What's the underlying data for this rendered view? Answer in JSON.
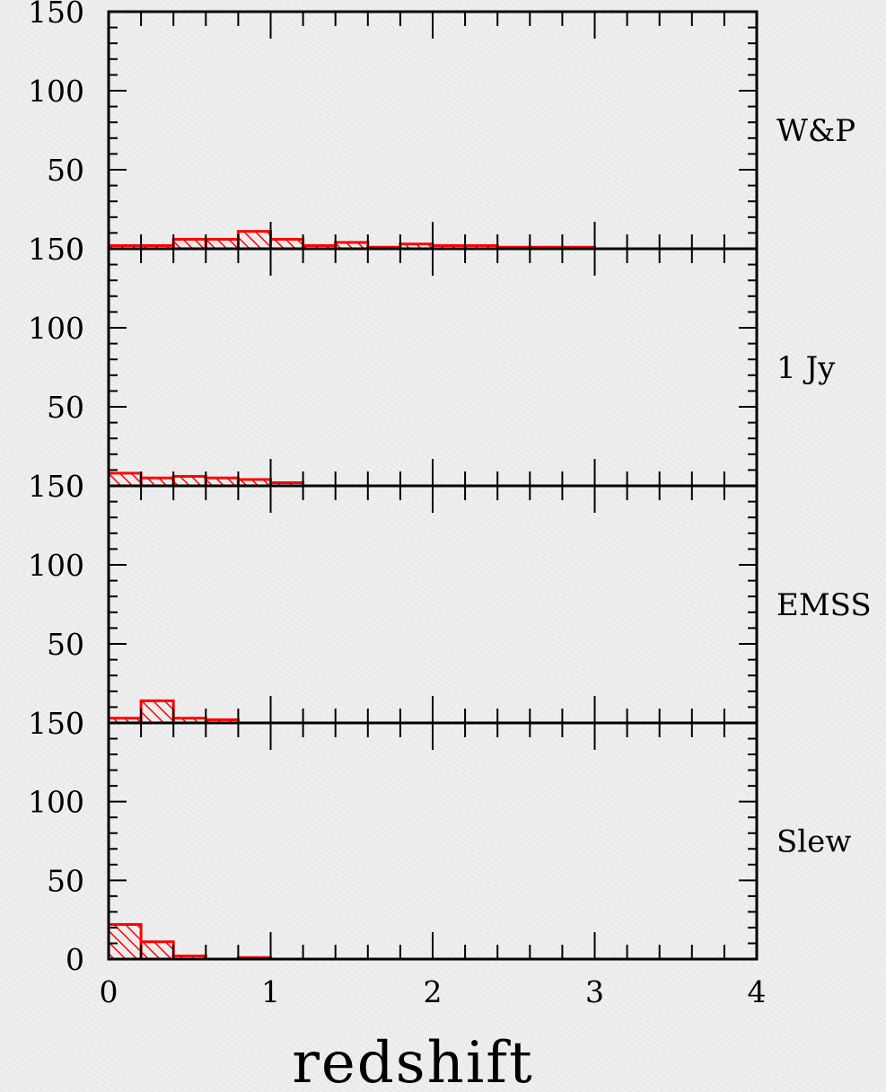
{
  "chart_data": {
    "type": "bar",
    "subtype": "stacked-panel histogram",
    "xlabel": "redshift",
    "xlim": [
      0,
      4
    ],
    "x_ticks": [
      "0",
      "1",
      "2",
      "3",
      "4"
    ],
    "ylim": [
      0,
      150
    ],
    "y_ticks": [
      "0",
      "50",
      "100",
      "150"
    ],
    "bin_width": 0.2,
    "bar_color": "#ff0000",
    "bar_style": "hatched",
    "grid": false,
    "panels": [
      {
        "label": "W&P",
        "bins": [
          {
            "x0": 0.0,
            "x1": 0.2,
            "value": 2
          },
          {
            "x0": 0.2,
            "x1": 0.4,
            "value": 2
          },
          {
            "x0": 0.4,
            "x1": 0.6,
            "value": 6
          },
          {
            "x0": 0.6,
            "x1": 0.8,
            "value": 6
          },
          {
            "x0": 0.8,
            "x1": 1.0,
            "value": 11
          },
          {
            "x0": 1.0,
            "x1": 1.2,
            "value": 6
          },
          {
            "x0": 1.2,
            "x1": 1.4,
            "value": 2
          },
          {
            "x0": 1.4,
            "x1": 1.6,
            "value": 4
          },
          {
            "x0": 1.6,
            "x1": 1.8,
            "value": 1
          },
          {
            "x0": 1.8,
            "x1": 2.0,
            "value": 3
          },
          {
            "x0": 2.0,
            "x1": 2.2,
            "value": 2
          },
          {
            "x0": 2.2,
            "x1": 2.4,
            "value": 2
          },
          {
            "x0": 2.4,
            "x1": 2.6,
            "value": 1
          },
          {
            "x0": 2.6,
            "x1": 2.8,
            "value": 1
          },
          {
            "x0": 2.8,
            "x1": 3.0,
            "value": 1
          }
        ]
      },
      {
        "label": "1 Jy",
        "bins": [
          {
            "x0": 0.0,
            "x1": 0.2,
            "value": 8
          },
          {
            "x0": 0.2,
            "x1": 0.4,
            "value": 5
          },
          {
            "x0": 0.4,
            "x1": 0.6,
            "value": 6
          },
          {
            "x0": 0.6,
            "x1": 0.8,
            "value": 5
          },
          {
            "x0": 0.8,
            "x1": 1.0,
            "value": 4
          },
          {
            "x0": 1.0,
            "x1": 1.2,
            "value": 2
          }
        ]
      },
      {
        "label": "EMSS",
        "bins": [
          {
            "x0": 0.0,
            "x1": 0.2,
            "value": 3
          },
          {
            "x0": 0.2,
            "x1": 0.4,
            "value": 14
          },
          {
            "x0": 0.4,
            "x1": 0.6,
            "value": 3
          },
          {
            "x0": 0.6,
            "x1": 0.8,
            "value": 2
          }
        ]
      },
      {
        "label": "Slew",
        "bins": [
          {
            "x0": 0.0,
            "x1": 0.2,
            "value": 22
          },
          {
            "x0": 0.2,
            "x1": 0.4,
            "value": 11
          },
          {
            "x0": 0.4,
            "x1": 0.6,
            "value": 2
          },
          {
            "x0": 0.8,
            "x1": 1.0,
            "value": 1
          }
        ]
      }
    ]
  }
}
